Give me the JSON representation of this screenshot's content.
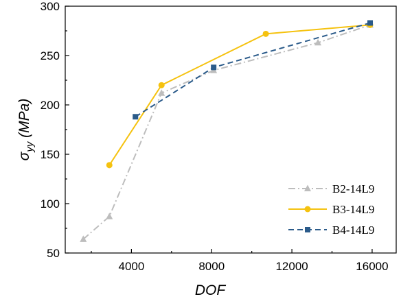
{
  "chart_data": {
    "type": "line",
    "xlabel": "DOF",
    "ylabel": {
      "base": "σ",
      "sub": "yy",
      "rest": " (MPa)"
    },
    "xlim": [
      700,
      17200
    ],
    "ylim": [
      50,
      300
    ],
    "xticks": [
      4000,
      8000,
      12000,
      16000
    ],
    "yticks": [
      50,
      100,
      150,
      200,
      250,
      300
    ],
    "grid": false,
    "legend_position": "bottom-right",
    "series": [
      {
        "name": "B2-14L9",
        "color": "#bdbdbd",
        "line_style": "dash-dot",
        "marker": "triangle",
        "x": [
          1600,
          2900,
          5500,
          8100,
          13300,
          15900
        ],
        "y": [
          64,
          87,
          212,
          235,
          263,
          281
        ]
      },
      {
        "name": "B3-14L9",
        "color": "#f5c20f",
        "line_style": "solid",
        "marker": "circle",
        "x": [
          2900,
          5500,
          10700,
          15900
        ],
        "y": [
          139,
          220,
          272,
          281
        ]
      },
      {
        "name": "B4-14L9",
        "color": "#2b5b8a",
        "line_style": "dash",
        "marker": "square",
        "x": [
          4200,
          8100,
          15900
        ],
        "y": [
          188,
          238,
          283
        ]
      }
    ]
  }
}
